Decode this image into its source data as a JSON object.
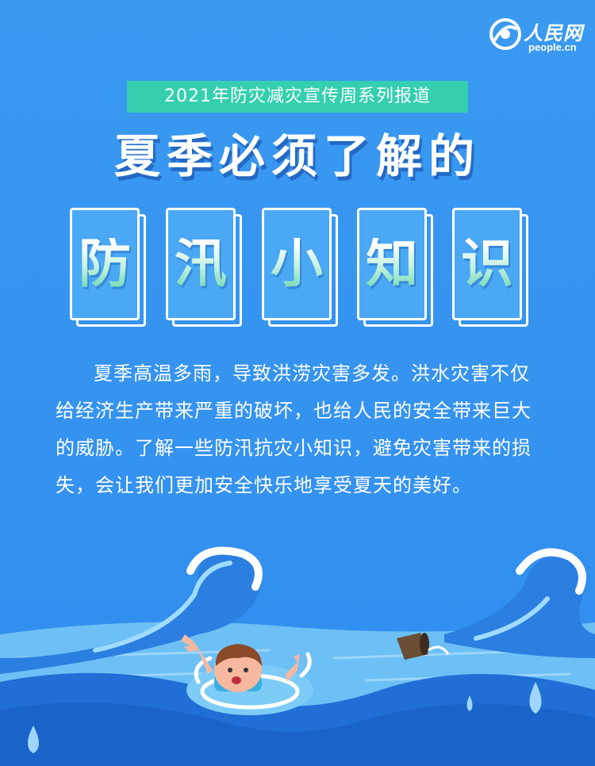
{
  "logo": {
    "name": "人民网",
    "domain": "people.cn"
  },
  "banner": {
    "text": "2021年防灾减灾宣传周系列报道"
  },
  "title": {
    "text": "夏季必须了解的"
  },
  "cards": [
    "防",
    "汛",
    "小",
    "知",
    "识"
  ],
  "body": {
    "paragraph": "夏季高温多雨，导致洪涝灾害多发。洪水灾害不仅给经济生产带来严重的破坏，也给人民的安全带来巨大的威胁。了解一些防汛抗灾小知识，避免灾害带来的损失，会让我们更加安全快乐地享受夏天的美好。"
  },
  "colors": {
    "background": "#3593f0",
    "banner": "#34cfae",
    "text": "#ffffff",
    "water_dark": "#1f6fd6"
  }
}
